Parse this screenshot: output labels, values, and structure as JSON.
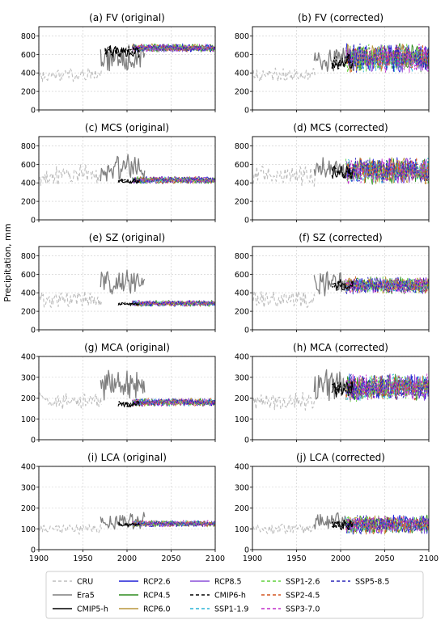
{
  "figure": {
    "ylabel": "Precipitation, mm",
    "legend": [
      {
        "label": "CRU",
        "color": "#bdbdbd",
        "dash": "4,3"
      },
      {
        "label": "Era5",
        "color": "#7f7f7f",
        "dash": ""
      },
      {
        "label": "CMIP5-h",
        "color": "#000000",
        "dash": ""
      },
      {
        "label": "RCP2.6",
        "color": "#1f1fd6",
        "dash": ""
      },
      {
        "label": "RCP4.5",
        "color": "#2e8b1e",
        "dash": ""
      },
      {
        "label": "RCP6.0",
        "color": "#b8963c",
        "dash": ""
      },
      {
        "label": "RCP8.5",
        "color": "#8a4fd8",
        "dash": ""
      },
      {
        "label": "CMIP6-h",
        "color": "#000000",
        "dash": "4,3"
      },
      {
        "label": "SSP1-1.9",
        "color": "#2ab3d6",
        "dash": "4,3"
      },
      {
        "label": "SSP1-2.6",
        "color": "#5fd13a",
        "dash": "4,3"
      },
      {
        "label": "SSP2-4.5",
        "color": "#d2541e",
        "dash": "4,3"
      },
      {
        "label": "SSP3-7.0",
        "color": "#c02bc9",
        "dash": "4,3"
      },
      {
        "label": "SSP5-8.5",
        "color": "#2a25b8",
        "dash": "4,3"
      }
    ]
  },
  "chart_data": [
    {
      "type": "line",
      "title": "(a) FV (original)",
      "xlim": [
        1900,
        2100
      ],
      "ylim": [
        0,
        900
      ],
      "xticks": [],
      "yticks": [
        0,
        200,
        400,
        600,
        800
      ],
      "cru": {
        "x": [
          1901,
          1971
        ],
        "mean": 380,
        "amp": 60
      },
      "era5": {
        "x": [
          1970,
          2020
        ],
        "mean": 560,
        "amp": 120
      },
      "hist": {
        "x": [
          1975,
          2014
        ],
        "mean": 630,
        "amp": 50
      },
      "future": {
        "x": [
          2006,
          2100
        ],
        "mean": 670,
        "amp": 35
      }
    },
    {
      "type": "line",
      "title": "(b) FV (corrected)",
      "xlim": [
        1900,
        2100
      ],
      "ylim": [
        0,
        900
      ],
      "xticks": [],
      "yticks": [
        0,
        200,
        400,
        600,
        800
      ],
      "cru": {
        "x": [
          1901,
          1971
        ],
        "mean": 380,
        "amp": 60
      },
      "era5": {
        "x": [
          1970,
          2005
        ],
        "mean": 560,
        "amp": 110
      },
      "hist": {
        "x": [
          1990,
          2014
        ],
        "mean": 520,
        "amp": 70
      },
      "future": {
        "x": [
          2006,
          2100
        ],
        "mean": 560,
        "amp": 120
      }
    },
    {
      "type": "line",
      "title": "(c) MCS (original)",
      "xlim": [
        1900,
        2100
      ],
      "ylim": [
        0,
        900
      ],
      "xticks": [],
      "yticks": [
        0,
        200,
        400,
        600,
        800
      ],
      "cru": {
        "x": [
          1901,
          1971
        ],
        "mean": 480,
        "amp": 90
      },
      "era5": {
        "x": [
          1970,
          2020
        ],
        "mean": 570,
        "amp": 130
      },
      "hist": {
        "x": [
          1990,
          2014
        ],
        "mean": 420,
        "amp": 20
      },
      "future": {
        "x": [
          2006,
          2100
        ],
        "mean": 430,
        "amp": 30
      }
    },
    {
      "type": "line",
      "title": "(d) MCS (corrected)",
      "xlim": [
        1900,
        2100
      ],
      "ylim": [
        0,
        900
      ],
      "xticks": [],
      "yticks": [
        0,
        200,
        400,
        600,
        800
      ],
      "cru": {
        "x": [
          1901,
          1971
        ],
        "mean": 480,
        "amp": 90
      },
      "era5": {
        "x": [
          1970,
          2005
        ],
        "mean": 540,
        "amp": 100
      },
      "hist": {
        "x": [
          1990,
          2014
        ],
        "mean": 510,
        "amp": 60
      },
      "future": {
        "x": [
          2006,
          2100
        ],
        "mean": 530,
        "amp": 110
      }
    },
    {
      "type": "line",
      "title": "(e) SZ (original)",
      "xlim": [
        1900,
        2100
      ],
      "ylim": [
        0,
        900
      ],
      "xticks": [],
      "yticks": [
        0,
        200,
        400,
        600,
        800
      ],
      "cru": {
        "x": [
          1901,
          1971
        ],
        "mean": 330,
        "amp": 70
      },
      "era5": {
        "x": [
          1970,
          2020
        ],
        "mean": 520,
        "amp": 110
      },
      "hist": {
        "x": [
          1990,
          2014
        ],
        "mean": 280,
        "amp": 15
      },
      "future": {
        "x": [
          2006,
          2100
        ],
        "mean": 285,
        "amp": 25
      }
    },
    {
      "type": "line",
      "title": "(f) SZ (corrected)",
      "xlim": [
        1900,
        2100
      ],
      "ylim": [
        0,
        900
      ],
      "xticks": [],
      "yticks": [
        0,
        200,
        400,
        600,
        800
      ],
      "cru": {
        "x": [
          1901,
          1971
        ],
        "mean": 330,
        "amp": 70
      },
      "era5": {
        "x": [
          1970,
          2005
        ],
        "mean": 500,
        "amp": 100
      },
      "hist": {
        "x": [
          1990,
          2014
        ],
        "mean": 480,
        "amp": 50
      },
      "future": {
        "x": [
          2006,
          2100
        ],
        "mean": 480,
        "amp": 70
      }
    },
    {
      "type": "line",
      "title": "(g) MCA (original)",
      "xlim": [
        1900,
        2100
      ],
      "ylim": [
        0,
        400
      ],
      "xticks": [],
      "yticks": [
        0,
        100,
        200,
        300,
        400
      ],
      "cru": {
        "x": [
          1901,
          1971
        ],
        "mean": 185,
        "amp": 35
      },
      "era5": {
        "x": [
          1970,
          2020
        ],
        "mean": 270,
        "amp": 60
      },
      "hist": {
        "x": [
          1990,
          2014
        ],
        "mean": 170,
        "amp": 12
      },
      "future": {
        "x": [
          2006,
          2100
        ],
        "mean": 180,
        "amp": 15
      }
    },
    {
      "type": "line",
      "title": "(h) MCA (corrected)",
      "xlim": [
        1900,
        2100
      ],
      "ylim": [
        0,
        400
      ],
      "xticks": [],
      "yticks": [
        0,
        100,
        200,
        300,
        400
      ],
      "cru": {
        "x": [
          1901,
          1971
        ],
        "mean": 185,
        "amp": 35
      },
      "era5": {
        "x": [
          1970,
          2005
        ],
        "mean": 260,
        "amp": 60
      },
      "hist": {
        "x": [
          1990,
          2014
        ],
        "mean": 245,
        "amp": 30
      },
      "future": {
        "x": [
          2006,
          2100
        ],
        "mean": 250,
        "amp": 50
      }
    },
    {
      "type": "line",
      "title": "(i) LCA (original)",
      "xlim": [
        1900,
        2100
      ],
      "ylim": [
        0,
        400
      ],
      "xticks": [
        1900,
        1950,
        2000,
        2050,
        2100
      ],
      "yticks": [
        0,
        100,
        200,
        300,
        400
      ],
      "cru": {
        "x": [
          1901,
          1971
        ],
        "mean": 100,
        "amp": 20
      },
      "era5": {
        "x": [
          1970,
          2020
        ],
        "mean": 140,
        "amp": 35
      },
      "hist": {
        "x": [
          1990,
          2014
        ],
        "mean": 120,
        "amp": 8
      },
      "future": {
        "x": [
          2006,
          2100
        ],
        "mean": 125,
        "amp": 12
      }
    },
    {
      "type": "line",
      "title": "(j) LCA (corrected)",
      "xlim": [
        1900,
        2100
      ],
      "ylim": [
        0,
        400
      ],
      "xticks": [
        1900,
        1950,
        2000,
        2050,
        2100
      ],
      "yticks": [
        0,
        100,
        200,
        300,
        400
      ],
      "cru": {
        "x": [
          1901,
          1971
        ],
        "mean": 100,
        "amp": 20
      },
      "era5": {
        "x": [
          1970,
          2005
        ],
        "mean": 140,
        "amp": 35
      },
      "hist": {
        "x": [
          1990,
          2014
        ],
        "mean": 120,
        "amp": 20
      },
      "future": {
        "x": [
          2006,
          2100
        ],
        "mean": 120,
        "amp": 35
      }
    }
  ]
}
